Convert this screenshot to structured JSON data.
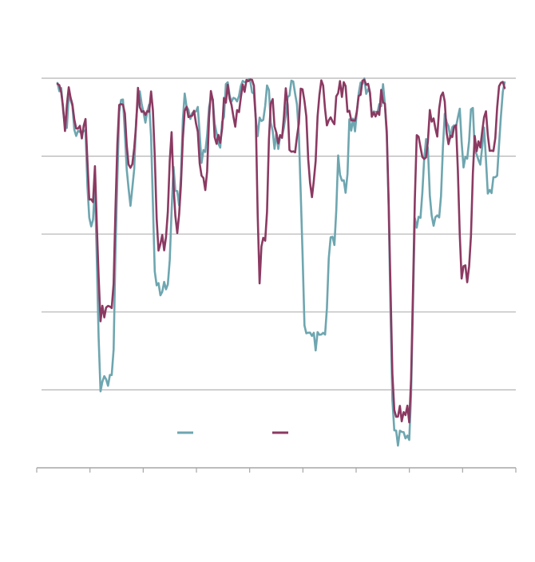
{
  "chart_data": {
    "type": "line",
    "title": "",
    "xlabel": "",
    "ylabel": "",
    "ylim": [
      -100,
      0
    ],
    "yticks": [
      0,
      -20,
      -40,
      -60,
      -80,
      -100
    ],
    "ytick_labels_visible": false,
    "xtick_count": 10,
    "xtick_labels_visible": false,
    "grid": "horizontal",
    "legend": "bottom-center",
    "x_points": 240,
    "series": [
      {
        "color": "#6ea6b0",
        "troughs": [
          [
            4,
            0,
            -12
          ],
          [
            12,
            2,
            -13
          ],
          [
            18,
            1,
            -35
          ],
          [
            26,
            3,
            -76
          ],
          [
            39,
            1,
            -28
          ],
          [
            47,
            1,
            -8
          ],
          [
            56,
            3,
            -52
          ],
          [
            64,
            1,
            -28
          ],
          [
            72,
            2,
            -8
          ],
          [
            78,
            1,
            -18
          ],
          [
            86,
            1,
            -14
          ],
          [
            95,
            1,
            -5
          ],
          [
            108,
            1,
            -10
          ],
          [
            118,
            2,
            -14
          ],
          [
            138,
            5,
            -65
          ],
          [
            146,
            2,
            -40
          ],
          [
            153,
            1,
            -26
          ],
          [
            158,
            1,
            -10
          ],
          [
            170,
            1,
            -8
          ],
          [
            184,
            4,
            -90
          ],
          [
            192,
            2,
            -35
          ],
          [
            196,
            1,
            -15
          ],
          [
            202,
            2,
            -35
          ],
          [
            211,
            2,
            -12
          ],
          [
            218,
            1,
            -20
          ],
          [
            225,
            1,
            -18
          ],
          [
            232,
            2,
            -25
          ]
        ],
        "noise": 5
      },
      {
        "color": "#8b3a62",
        "troughs": [
          [
            4,
            0,
            -10
          ],
          [
            12,
            2,
            -12
          ],
          [
            18,
            1,
            -27
          ],
          [
            26,
            3,
            -58
          ],
          [
            39,
            1,
            -22
          ],
          [
            47,
            1,
            -8
          ],
          [
            56,
            2,
            -40
          ],
          [
            64,
            1,
            -35
          ],
          [
            72,
            2,
            -8
          ],
          [
            78,
            1,
            -25
          ],
          [
            86,
            1,
            -13
          ],
          [
            95,
            1,
            -8
          ],
          [
            108,
            0,
            -52
          ],
          [
            110,
            1,
            -40
          ],
          [
            118,
            1,
            -14
          ],
          [
            126,
            1,
            -18
          ],
          [
            136,
            1,
            -26
          ],
          [
            146,
            1,
            -10
          ],
          [
            158,
            1,
            -10
          ],
          [
            170,
            1,
            -8
          ],
          [
            184,
            4,
            -84
          ],
          [
            192,
            2,
            -12
          ],
          [
            196,
            1,
            -20
          ],
          [
            202,
            1,
            -10
          ],
          [
            211,
            2,
            -12
          ],
          [
            218,
            2,
            -48
          ],
          [
            225,
            1,
            -16
          ],
          [
            232,
            1,
            -18
          ]
        ],
        "noise": 5
      }
    ]
  }
}
